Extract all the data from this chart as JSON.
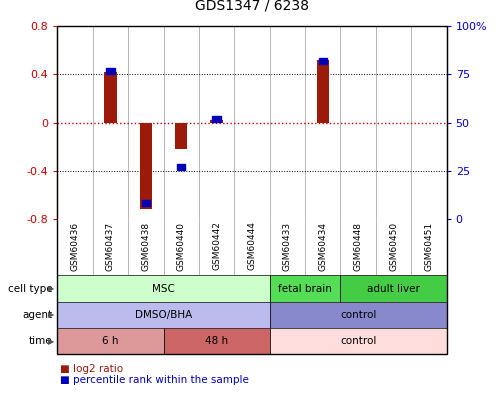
{
  "title": "GDS1347 / 6238",
  "samples": [
    "GSM60436",
    "GSM60437",
    "GSM60438",
    "GSM60440",
    "GSM60442",
    "GSM60444",
    "GSM60433",
    "GSM60434",
    "GSM60448",
    "GSM60450",
    "GSM60451"
  ],
  "log2_ratio": [
    0.0,
    0.42,
    -0.72,
    -0.22,
    0.02,
    0.0,
    0.0,
    0.52,
    0.0,
    0.0,
    0.0
  ],
  "percentile_rank": [
    null,
    0.77,
    0.08,
    0.27,
    0.52,
    null,
    null,
    0.82,
    null,
    null,
    null
  ],
  "ylim_left": [
    -0.8,
    0.8
  ],
  "ylim_right": [
    0,
    100
  ],
  "yticks_left": [
    -0.8,
    -0.4,
    0.0,
    0.4,
    0.8
  ],
  "yticks_right": [
    0,
    25,
    50,
    75,
    100
  ],
  "ytick_labels_left": [
    "-0.8",
    "-0.4",
    "0",
    "0.4",
    "0.8"
  ],
  "ytick_labels_right": [
    "0",
    "25",
    "50",
    "75",
    "100%"
  ],
  "hline_color": "#cc0000",
  "grid_dotted_color": "#000000",
  "bar_color_log2": "#9b1a0a",
  "bar_color_pct": "#0000bb",
  "cell_type_groups": [
    {
      "label": "MSC",
      "start": 0,
      "end": 6,
      "color": "#ccffcc"
    },
    {
      "label": "fetal brain",
      "start": 6,
      "end": 8,
      "color": "#55dd55"
    },
    {
      "label": "adult liver",
      "start": 8,
      "end": 11,
      "color": "#44cc44"
    }
  ],
  "agent_groups": [
    {
      "label": "DMSO/BHA",
      "start": 0,
      "end": 6,
      "color": "#bbbbee"
    },
    {
      "label": "control",
      "start": 6,
      "end": 11,
      "color": "#8888cc"
    }
  ],
  "time_groups": [
    {
      "label": "6 h",
      "start": 0,
      "end": 3,
      "color": "#dd9999"
    },
    {
      "label": "48 h",
      "start": 3,
      "end": 6,
      "color": "#cc6666"
    },
    {
      "label": "control",
      "start": 6,
      "end": 11,
      "color": "#ffdddd"
    }
  ],
  "row_labels": [
    "cell type",
    "agent",
    "time"
  ],
  "legend_log2": "log2 ratio",
  "legend_pct": "percentile rank within the sample",
  "left_color": "#cc0000",
  "right_color": "#0000cc",
  "sample_bg_color": "#dddddd",
  "border_color": "#888888"
}
